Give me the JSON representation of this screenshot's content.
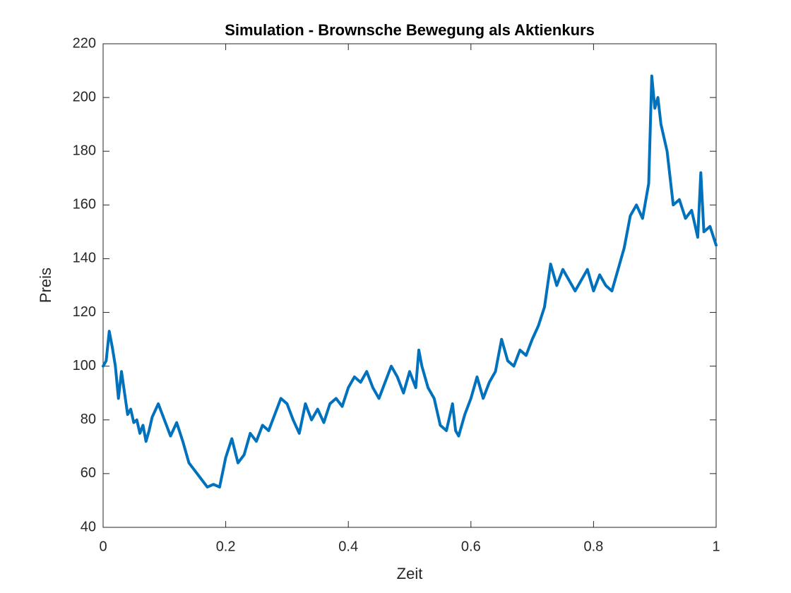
{
  "chart_data": {
    "type": "line",
    "title": "Simulation - Brownsche Bewegung als Aktienkurs",
    "x_label": "Zeit",
    "y_label": "Preis",
    "x": [
      0,
      0.005,
      0.01,
      0.015,
      0.02,
      0.025,
      0.03,
      0.035,
      0.04,
      0.045,
      0.05,
      0.055,
      0.06,
      0.065,
      0.07,
      0.075,
      0.08,
      0.09,
      0.1,
      0.11,
      0.12,
      0.13,
      0.14,
      0.15,
      0.16,
      0.17,
      0.18,
      0.19,
      0.2,
      0.21,
      0.22,
      0.23,
      0.24,
      0.25,
      0.26,
      0.27,
      0.28,
      0.29,
      0.3,
      0.31,
      0.32,
      0.33,
      0.34,
      0.35,
      0.36,
      0.37,
      0.38,
      0.39,
      0.4,
      0.41,
      0.42,
      0.43,
      0.44,
      0.45,
      0.46,
      0.47,
      0.48,
      0.49,
      0.5,
      0.51,
      0.515,
      0.52,
      0.53,
      0.54,
      0.55,
      0.56,
      0.57,
      0.575,
      0.58,
      0.59,
      0.6,
      0.61,
      0.62,
      0.63,
      0.64,
      0.65,
      0.66,
      0.67,
      0.68,
      0.69,
      0.7,
      0.71,
      0.72,
      0.73,
      0.74,
      0.75,
      0.76,
      0.77,
      0.78,
      0.79,
      0.8,
      0.81,
      0.82,
      0.83,
      0.84,
      0.85,
      0.86,
      0.87,
      0.88,
      0.89,
      0.895,
      0.9,
      0.905,
      0.91,
      0.92,
      0.93,
      0.94,
      0.95,
      0.96,
      0.97,
      0.975,
      0.98,
      0.99,
      1
    ],
    "series": [
      {
        "color": "#0072bd",
        "values": [
          100,
          102,
          113,
          107,
          100,
          88,
          98,
          90,
          82,
          84,
          79,
          80,
          75,
          78,
          72,
          76,
          81,
          86,
          80,
          74,
          79,
          72,
          64,
          61,
          58,
          55,
          56,
          55,
          66,
          73,
          64,
          67,
          75,
          72,
          78,
          76,
          82,
          88,
          86,
          80,
          75,
          86,
          80,
          84,
          79,
          86,
          88,
          85,
          92,
          96,
          94,
          98,
          92,
          88,
          94,
          100,
          96,
          90,
          98,
          92,
          106,
          100,
          92,
          88,
          78,
          76,
          86,
          76,
          74,
          82,
          88,
          96,
          88,
          94,
          98,
          110,
          102,
          100,
          106,
          104,
          110,
          115,
          122,
          138,
          130,
          136,
          132,
          128,
          132,
          136,
          128,
          134,
          130,
          128,
          136,
          144,
          156,
          160,
          155,
          168,
          208,
          196,
          200,
          190,
          180,
          160,
          162,
          155,
          158,
          148,
          172,
          150,
          152,
          145
        ]
      }
    ],
    "xlim": [
      0,
      1
    ],
    "ylim": [
      40,
      220
    ],
    "xticks": [
      0,
      0.2,
      0.4,
      0.6,
      0.8,
      1
    ],
    "yticks": [
      40,
      60,
      80,
      100,
      120,
      140,
      160,
      180,
      200,
      220
    ],
    "grid": false
  }
}
